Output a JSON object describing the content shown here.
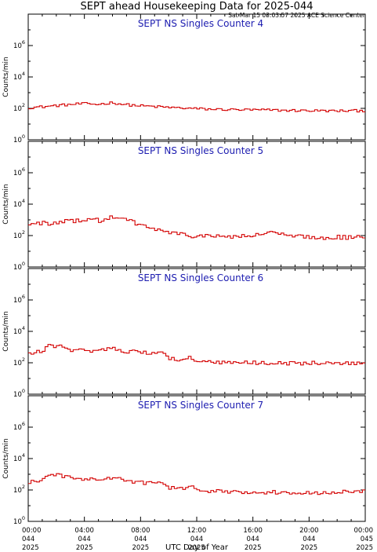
{
  "header": {
    "title": "SEPT ahead Housekeeping Data for 2025-044",
    "timestamp": "Sat Mar 15 03:03:57 2025 ACE Science Center"
  },
  "colors": {
    "series": "#d40000",
    "panel_title": "#1c1cb0"
  },
  "chart_data": [
    {
      "type": "line",
      "title": "SEPT NS Singles Counter 4",
      "ylabel": "Counts/min",
      "yscale": "log",
      "ylim": [
        1,
        100000000
      ],
      "yticks": [
        {
          "base": "10",
          "exp": "0",
          "v": 1
        },
        {
          "base": "10",
          "exp": "2",
          "v": 100
        },
        {
          "base": "10",
          "exp": "4",
          "v": 10000
        },
        {
          "base": "10",
          "exp": "6",
          "v": 1000000
        }
      ],
      "xlim": [
        0,
        24
      ],
      "anchors": [
        [
          0,
          110
        ],
        [
          1,
          125
        ],
        [
          2,
          150
        ],
        [
          3,
          175
        ],
        [
          4,
          200
        ],
        [
          5,
          180
        ],
        [
          6,
          230
        ],
        [
          7,
          170
        ],
        [
          8,
          145
        ],
        [
          9,
          130
        ],
        [
          10,
          115
        ],
        [
          11,
          105
        ],
        [
          12,
          95
        ],
        [
          13,
          88
        ],
        [
          14,
          85
        ],
        [
          15,
          82
        ],
        [
          16,
          80
        ],
        [
          17,
          78
        ],
        [
          18,
          75
        ],
        [
          19,
          73
        ],
        [
          20,
          72
        ],
        [
          21,
          70
        ],
        [
          22,
          68
        ],
        [
          23,
          70
        ],
        [
          24,
          72
        ]
      ],
      "noise": 0.08
    },
    {
      "type": "line",
      "title": "SEPT NS Singles Counter 5",
      "ylabel": "Counts/min",
      "yscale": "log",
      "ylim": [
        1,
        100000000
      ],
      "yticks": [
        {
          "base": "10",
          "exp": "0",
          "v": 1
        },
        {
          "base": "10",
          "exp": "2",
          "v": 100
        },
        {
          "base": "10",
          "exp": "4",
          "v": 10000
        },
        {
          "base": "10",
          "exp": "6",
          "v": 1000000
        }
      ],
      "xlim": [
        0,
        24
      ],
      "anchors": [
        [
          0,
          500
        ],
        [
          0.8,
          600
        ],
        [
          1.2,
          800
        ],
        [
          1.5,
          420
        ],
        [
          2,
          600
        ],
        [
          3,
          850
        ],
        [
          4,
          1000
        ],
        [
          4.5,
          1300
        ],
        [
          5,
          850
        ],
        [
          6,
          1400
        ],
        [
          7,
          1000
        ],
        [
          8,
          500
        ],
        [
          9,
          250
        ],
        [
          10,
          160
        ],
        [
          11,
          110
        ],
        [
          12,
          95
        ],
        [
          13,
          88
        ],
        [
          14,
          90
        ],
        [
          15,
          85
        ],
        [
          16,
          95
        ],
        [
          16.8,
          130
        ],
        [
          17.3,
          200
        ],
        [
          18,
          110
        ],
        [
          19,
          85
        ],
        [
          20,
          80
        ],
        [
          21,
          75
        ],
        [
          22,
          80
        ],
        [
          23,
          75
        ],
        [
          24,
          82
        ]
      ],
      "noise": 0.14
    },
    {
      "type": "line",
      "title": "SEPT NS Singles Counter 6",
      "ylabel": "Counts/min",
      "yscale": "log",
      "ylim": [
        1,
        100000000
      ],
      "yticks": [
        {
          "base": "10",
          "exp": "0",
          "v": 1
        },
        {
          "base": "10",
          "exp": "2",
          "v": 100
        },
        {
          "base": "10",
          "exp": "4",
          "v": 10000
        },
        {
          "base": "10",
          "exp": "6",
          "v": 1000000
        }
      ],
      "xlim": [
        0,
        24
      ],
      "anchors": [
        [
          0,
          350
        ],
        [
          1,
          550
        ],
        [
          1.5,
          1300
        ],
        [
          2.3,
          1100
        ],
        [
          2.8,
          600
        ],
        [
          4,
          650
        ],
        [
          5,
          550
        ],
        [
          6,
          1100
        ],
        [
          6.5,
          600
        ],
        [
          7.5,
          500
        ],
        [
          9,
          400
        ],
        [
          9.6,
          500
        ],
        [
          10,
          200
        ],
        [
          11,
          150
        ],
        [
          11.5,
          220
        ],
        [
          12,
          110
        ],
        [
          14,
          100
        ],
        [
          16,
          100
        ],
        [
          18,
          95
        ],
        [
          20,
          95
        ],
        [
          22,
          92
        ],
        [
          24,
          95
        ]
      ],
      "noise": 0.12
    },
    {
      "type": "line",
      "title": "SEPT NS Singles Counter 7",
      "ylabel": "Counts/min",
      "yscale": "log",
      "ylim": [
        1,
        100000000
      ],
      "yticks": [
        {
          "base": "10",
          "exp": "0",
          "v": 1
        },
        {
          "base": "10",
          "exp": "2",
          "v": 100
        },
        {
          "base": "10",
          "exp": "4",
          "v": 10000
        },
        {
          "base": "10",
          "exp": "6",
          "v": 1000000
        }
      ],
      "xlim": [
        0,
        24
      ],
      "anchors": [
        [
          0,
          300
        ],
        [
          1,
          450
        ],
        [
          1.8,
          1000
        ],
        [
          3,
          600
        ],
        [
          4,
          500
        ],
        [
          5,
          450
        ],
        [
          6,
          600
        ],
        [
          7,
          400
        ],
        [
          8,
          300
        ],
        [
          9,
          250
        ],
        [
          9.4,
          350
        ],
        [
          10,
          150
        ],
        [
          11,
          110
        ],
        [
          11.5,
          190
        ],
        [
          12,
          90
        ],
        [
          14,
          80
        ],
        [
          16,
          75
        ],
        [
          18,
          70
        ],
        [
          20,
          68
        ],
        [
          22,
          70
        ],
        [
          24,
          85
        ]
      ],
      "noise": 0.12
    }
  ],
  "x_axis": {
    "label": "UTC Day of Year",
    "ticks": [
      {
        "x": 0,
        "time": "00:00",
        "doy": "044",
        "year": "2025"
      },
      {
        "x": 4,
        "time": "04:00",
        "doy": "044",
        "year": "2025"
      },
      {
        "x": 8,
        "time": "08:00",
        "doy": "044",
        "year": "2025"
      },
      {
        "x": 12,
        "time": "12:00",
        "doy": "044",
        "year": "2025"
      },
      {
        "x": 16,
        "time": "16:00",
        "doy": "044",
        "year": "2025"
      },
      {
        "x": 20,
        "time": "20:00",
        "doy": "044",
        "year": "2025"
      },
      {
        "x": 24,
        "time": "00:00",
        "doy": "045",
        "year": "2025"
      }
    ]
  }
}
